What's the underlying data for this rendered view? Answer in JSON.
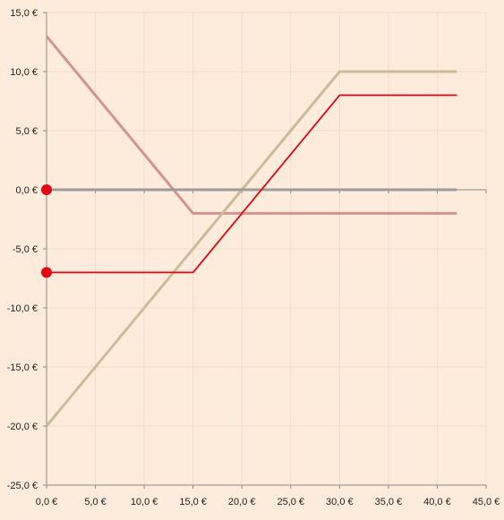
{
  "chart_data": {
    "type": "line",
    "xlim": [
      0,
      45
    ],
    "ylim": [
      -25,
      15
    ],
    "x_ticks": [
      "0,0 €",
      "5,0 €",
      "10,0 €",
      "15,0 €",
      "20,0 €",
      "25,0 €",
      "30,0 €",
      "35,0 €",
      "40,0 €",
      "45,0 €"
    ],
    "x_tick_values": [
      0,
      5,
      10,
      15,
      20,
      25,
      30,
      35,
      40,
      45
    ],
    "y_ticks": [
      "15,0 €",
      "10,0 €",
      "5,0 €",
      "0,0 €",
      "-5,0 €",
      "-10,0 €",
      "-15,0 €",
      "-20,0 €",
      "-25,0 €"
    ],
    "y_tick_values": [
      15,
      10,
      5,
      0,
      -5,
      -10,
      -15,
      -20,
      -25
    ],
    "grid": true,
    "legend": "none",
    "series": [
      {
        "color": "#d4938d",
        "points": [
          [
            0,
            13
          ],
          [
            15,
            -2
          ],
          [
            42,
            -2
          ]
        ]
      },
      {
        "color": "#c9bd98",
        "points": [
          [
            0,
            -20
          ],
          [
            30,
            10
          ],
          [
            42,
            10
          ]
        ]
      },
      {
        "color": "#9c9c9c",
        "points": [
          [
            0,
            0
          ],
          [
            42,
            0
          ]
        ]
      },
      {
        "color": "#e30613",
        "points": [
          [
            0,
            -7
          ],
          [
            15,
            -7
          ],
          [
            30,
            8
          ],
          [
            42,
            8
          ]
        ]
      }
    ],
    "markers": [
      {
        "color": "#e30613",
        "x": 0,
        "y": 0
      },
      {
        "color": "#e30613",
        "x": 0,
        "y": -7
      }
    ]
  }
}
